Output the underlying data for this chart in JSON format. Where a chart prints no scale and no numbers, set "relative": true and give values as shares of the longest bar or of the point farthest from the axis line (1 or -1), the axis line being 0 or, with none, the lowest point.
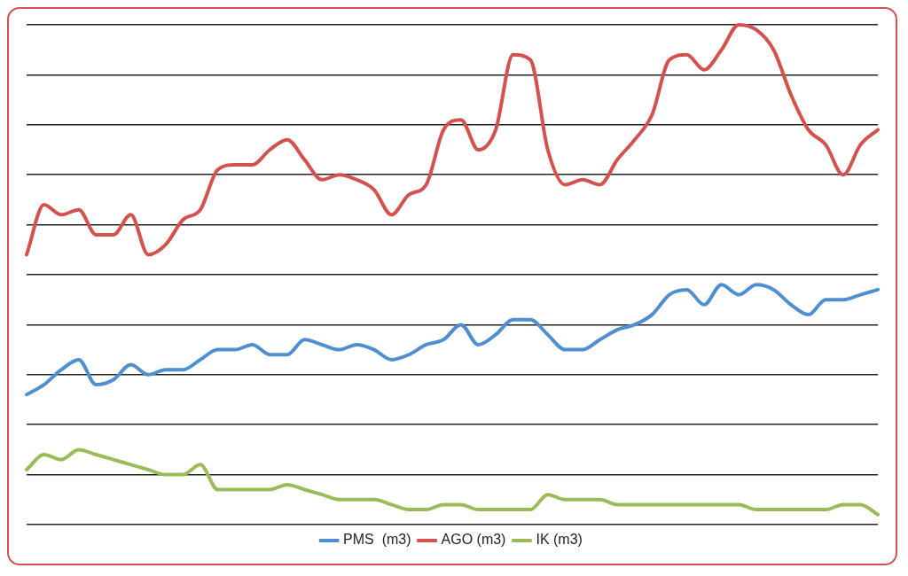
{
  "chart_data": {
    "type": "line",
    "relative": true,
    "grid": "y",
    "legend": "bottom",
    "marker": "none",
    "line_style": "solid",
    "categories": [
      null,
      null,
      null,
      null,
      null,
      null,
      null,
      null,
      null,
      null,
      null,
      null,
      null,
      null,
      null,
      null,
      null,
      null,
      null,
      null,
      null,
      null,
      null,
      null,
      null,
      null,
      null,
      null,
      null,
      null,
      null,
      null,
      null,
      null,
      null,
      null,
      null,
      null,
      null,
      null,
      null,
      null,
      null,
      null,
      null,
      null,
      null,
      null,
      null,
      null
    ],
    "series": [
      {
        "name": "PMS  (m3)",
        "color": "#4f8fd0",
        "values": [
          0.26,
          0.28,
          0.31,
          0.33,
          0.28,
          0.29,
          0.32,
          0.3,
          0.31,
          0.31,
          0.33,
          0.35,
          0.35,
          0.36,
          0.34,
          0.34,
          0.37,
          0.36,
          0.35,
          0.36,
          0.35,
          0.33,
          0.34,
          0.36,
          0.37,
          0.4,
          0.36,
          0.38,
          0.41,
          0.41,
          0.38,
          0.35,
          0.35,
          0.37,
          0.39,
          0.4,
          0.42,
          0.46,
          0.47,
          0.44,
          0.48,
          0.46,
          0.48,
          0.47,
          0.44,
          0.42,
          0.45,
          0.45,
          0.46,
          0.47
        ]
      },
      {
        "name": "AGO (m3)",
        "color": "#d4524e",
        "values": [
          0.54,
          0.64,
          0.62,
          0.63,
          0.58,
          0.58,
          0.62,
          0.54,
          0.56,
          0.61,
          0.63,
          0.71,
          0.72,
          0.72,
          0.75,
          0.77,
          0.73,
          0.69,
          0.7,
          0.69,
          0.67,
          0.62,
          0.66,
          0.68,
          0.79,
          0.81,
          0.75,
          0.79,
          0.94,
          0.93,
          0.75,
          0.68,
          0.69,
          0.68,
          0.73,
          0.77,
          0.82,
          0.93,
          0.94,
          0.91,
          0.95,
          1.0,
          0.99,
          0.95,
          0.86,
          0.79,
          0.76,
          0.7,
          0.76,
          0.79
        ]
      },
      {
        "name": "IK (m3)",
        "color": "#9bbb59",
        "values": [
          0.11,
          0.14,
          0.13,
          0.15,
          0.14,
          0.13,
          0.12,
          0.11,
          0.1,
          0.1,
          0.12,
          0.07,
          0.07,
          0.07,
          0.07,
          0.08,
          0.07,
          0.06,
          0.05,
          0.05,
          0.05,
          0.04,
          0.03,
          0.03,
          0.04,
          0.04,
          0.03,
          0.03,
          0.03,
          0.03,
          0.06,
          0.05,
          0.05,
          0.05,
          0.04,
          0.04,
          0.04,
          0.04,
          0.04,
          0.04,
          0.04,
          0.04,
          0.03,
          0.03,
          0.03,
          0.03,
          0.03,
          0.04,
          0.04,
          0.02
        ]
      }
    ]
  }
}
